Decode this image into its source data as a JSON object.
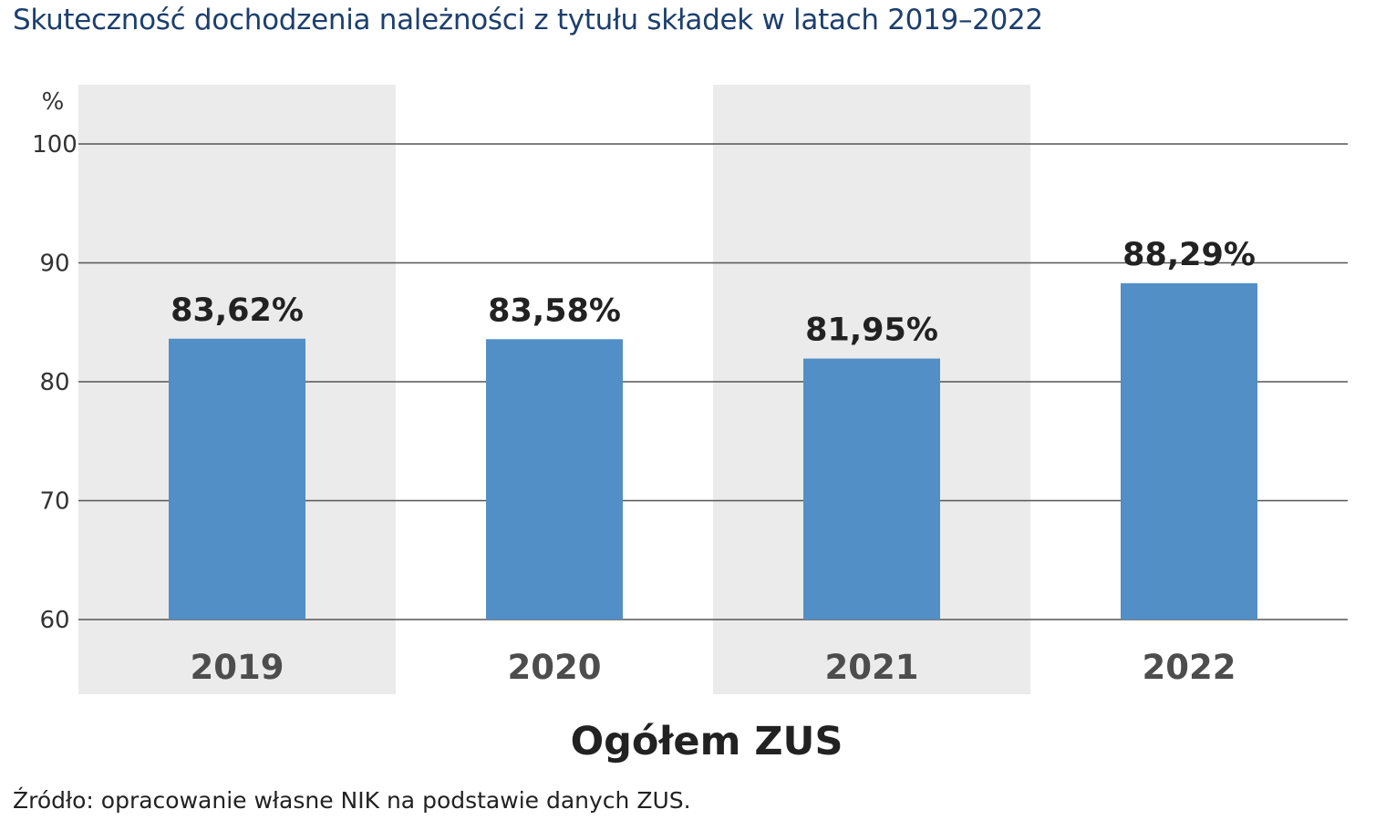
{
  "title": "Skuteczność dochodzenia należności z tytułu składek w latach 2019–2022",
  "source": "Źródło: opracowanie własne NIK na podstawie danych ZUS.",
  "colors": {
    "bar": "#528fc6",
    "band": "#ebebeb",
    "grid": "#555555"
  },
  "chart_data": {
    "type": "bar",
    "categories": [
      "2019",
      "2020",
      "2021",
      "2022"
    ],
    "values": [
      83.62,
      83.58,
      81.95,
      88.29
    ],
    "value_labels": [
      "83,62%",
      "83,58%",
      "81,95%",
      "88,29%"
    ],
    "ylabel": "%",
    "xlabel": "Ogółem ZUS",
    "ylim": [
      60,
      100
    ],
    "yticks": [
      60,
      70,
      80,
      90,
      100
    ],
    "grid": true,
    "shaded_categories": [
      "2019",
      "2021"
    ]
  }
}
